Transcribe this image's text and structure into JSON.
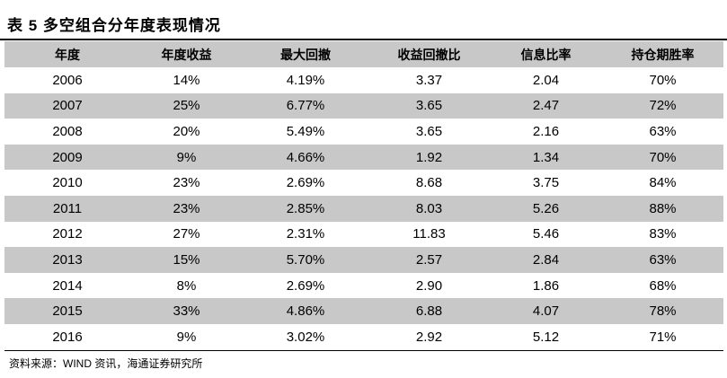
{
  "title": "表 5 多空组合分年度表现情况",
  "table": {
    "columns": [
      "年度",
      "年度收益",
      "最大回撤",
      "收益回撤比",
      "信息比率",
      "持仓期胜率"
    ],
    "rows": [
      [
        "2006",
        "14%",
        "4.19%",
        "3.37",
        "2.04",
        "70%"
      ],
      [
        "2007",
        "25%",
        "6.77%",
        "3.65",
        "2.47",
        "72%"
      ],
      [
        "2008",
        "20%",
        "5.49%",
        "3.65",
        "2.16",
        "63%"
      ],
      [
        "2009",
        "9%",
        "4.66%",
        "1.92",
        "1.34",
        "70%"
      ],
      [
        "2010",
        "23%",
        "2.69%",
        "8.68",
        "3.75",
        "84%"
      ],
      [
        "2011",
        "23%",
        "2.85%",
        "8.03",
        "5.26",
        "88%"
      ],
      [
        "2012",
        "27%",
        "2.31%",
        "11.83",
        "5.46",
        "83%"
      ],
      [
        "2013",
        "15%",
        "5.70%",
        "2.57",
        "2.84",
        "63%"
      ],
      [
        "2014",
        "8%",
        "2.69%",
        "2.90",
        "1.86",
        "68%"
      ],
      [
        "2015",
        "33%",
        "4.86%",
        "6.88",
        "4.07",
        "78%"
      ],
      [
        "2016",
        "9%",
        "3.02%",
        "2.92",
        "5.12",
        "71%"
      ]
    ]
  },
  "source": "资料来源：WIND 资讯，海通证券研究所"
}
